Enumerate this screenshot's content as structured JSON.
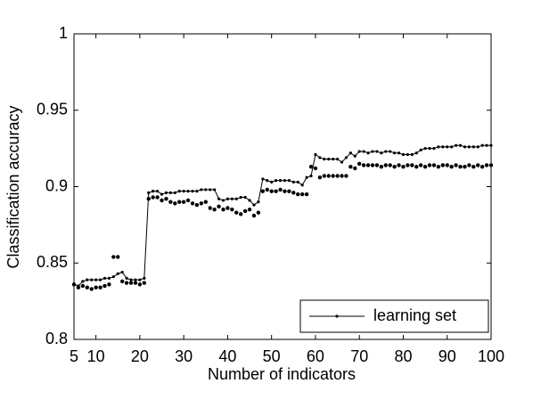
{
  "chart_data": {
    "type": "line",
    "xlabel": "Number of indicators",
    "ylabel": "Classification accuracy",
    "x": [
      5,
      6,
      7,
      8,
      9,
      10,
      11,
      12,
      13,
      14,
      15,
      16,
      17,
      18,
      19,
      20,
      21,
      22,
      23,
      24,
      25,
      26,
      27,
      28,
      29,
      30,
      31,
      32,
      33,
      34,
      35,
      36,
      37,
      38,
      39,
      40,
      41,
      42,
      43,
      44,
      45,
      46,
      47,
      48,
      49,
      50,
      51,
      52,
      53,
      54,
      55,
      56,
      57,
      58,
      59,
      60,
      61,
      62,
      63,
      64,
      65,
      66,
      67,
      68,
      69,
      70,
      71,
      72,
      73,
      74,
      75,
      76,
      77,
      78,
      79,
      80,
      81,
      82,
      83,
      84,
      85,
      86,
      87,
      88,
      89,
      90,
      91,
      92,
      93,
      94,
      95,
      96,
      97,
      98,
      99,
      100
    ],
    "series": [
      {
        "name": "learning set",
        "color": "#000000",
        "values": [
          0.836,
          0.835,
          0.838,
          0.839,
          0.839,
          0.839,
          0.839,
          0.84,
          0.84,
          0.841,
          0.843,
          0.844,
          0.84,
          0.839,
          0.839,
          0.839,
          0.84,
          0.896,
          0.897,
          0.897,
          0.895,
          0.896,
          0.896,
          0.896,
          0.897,
          0.897,
          0.897,
          0.897,
          0.897,
          0.898,
          0.898,
          0.898,
          0.898,
          0.892,
          0.891,
          0.892,
          0.892,
          0.892,
          0.893,
          0.893,
          0.891,
          0.888,
          0.89,
          0.905,
          0.904,
          0.903,
          0.904,
          0.904,
          0.904,
          0.904,
          0.903,
          0.903,
          0.901,
          0.906,
          0.907,
          0.921,
          0.919,
          0.918,
          0.918,
          0.918,
          0.918,
          0.916,
          0.919,
          0.922,
          0.92,
          0.923,
          0.923,
          0.922,
          0.923,
          0.923,
          0.922,
          0.923,
          0.923,
          0.922,
          0.922,
          0.921,
          0.921,
          0.921,
          0.922,
          0.924,
          0.925,
          0.925,
          0.925,
          0.926,
          0.926,
          0.926,
          0.926,
          0.927,
          0.927,
          0.926,
          0.926,
          0.926,
          0.926,
          0.927,
          0.927,
          0.927
        ]
      },
      {
        "color": "#000000",
        "values": [
          0.836,
          0.834,
          0.835,
          0.834,
          0.833,
          0.834,
          0.834,
          0.835,
          0.836,
          0.854,
          0.854,
          0.838,
          0.837,
          0.837,
          0.837,
          0.836,
          0.837,
          0.892,
          0.893,
          0.893,
          0.891,
          0.892,
          0.89,
          0.889,
          0.89,
          0.89,
          0.891,
          0.889,
          0.888,
          0.889,
          0.89,
          0.886,
          0.885,
          0.887,
          0.885,
          0.886,
          0.885,
          0.883,
          0.882,
          0.884,
          0.885,
          0.881,
          0.883,
          0.897,
          0.898,
          0.897,
          0.897,
          0.898,
          0.897,
          0.897,
          0.896,
          0.895,
          0.895,
          0.895,
          0.913,
          0.912,
          0.906,
          0.907,
          0.907,
          0.907,
          0.907,
          0.907,
          0.907,
          0.913,
          0.912,
          0.915,
          0.914,
          0.914,
          0.914,
          0.914,
          0.913,
          0.914,
          0.914,
          0.913,
          0.914,
          0.913,
          0.914,
          0.914,
          0.913,
          0.914,
          0.913,
          0.914,
          0.914,
          0.913,
          0.914,
          0.914,
          0.913,
          0.914,
          0.913,
          0.913,
          0.914,
          0.913,
          0.914,
          0.913,
          0.914,
          0.914
        ]
      }
    ],
    "xlim": [
      5,
      100
    ],
    "xticks": [
      5,
      10,
      20,
      30,
      40,
      50,
      60,
      70,
      80,
      90,
      100
    ],
    "ylim": [
      0.8,
      1
    ],
    "yticks": [
      0.8,
      0.85,
      0.9,
      0.95,
      1
    ],
    "legend": "lower right"
  }
}
